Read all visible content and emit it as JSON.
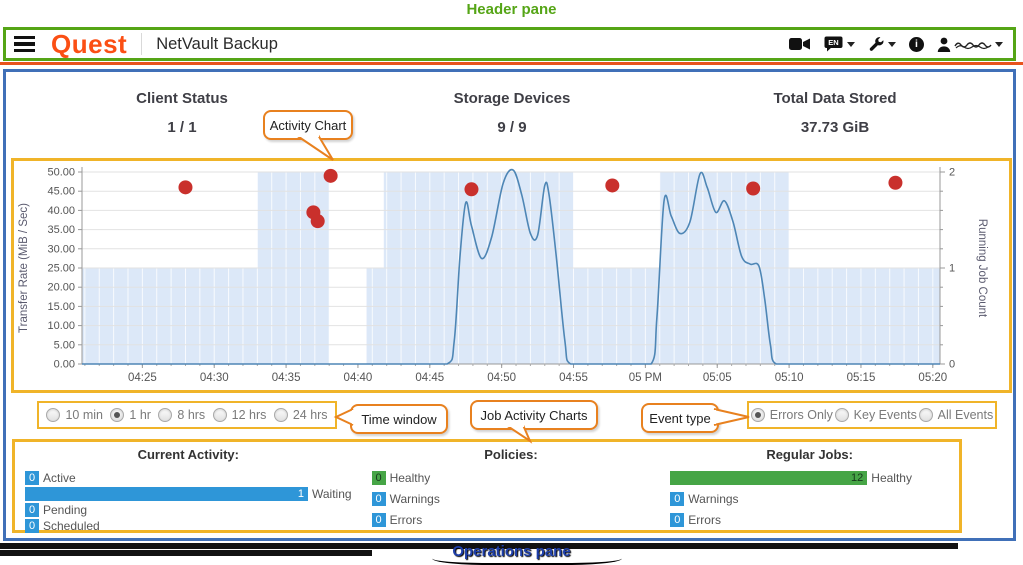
{
  "annotations": {
    "header_pane": "Header pane",
    "operations_pane": "Operations pane",
    "activity_chart": "Activity Chart",
    "time_window": "Time window",
    "job_activity_charts": "Job Activity Charts",
    "event_type": "Event type"
  },
  "header": {
    "brand": "Quest",
    "app_title": "NetVault Backup",
    "language_badge": "EN",
    "icons": [
      "menu-icon",
      "video-camera-icon",
      "language-en-icon",
      "support-tools-icon",
      "info-icon",
      "user-icon"
    ]
  },
  "stats": [
    {
      "label": "Client Status",
      "value": "1 / 1"
    },
    {
      "label": "Storage Devices",
      "value": "9 / 9"
    },
    {
      "label": "Total Data Stored",
      "value": "37.73 GiB"
    }
  ],
  "controls": {
    "time_window_options": [
      {
        "label": "10 min",
        "selected": false
      },
      {
        "label": "1 hr",
        "selected": true
      },
      {
        "label": "8 hrs",
        "selected": false
      },
      {
        "label": "12 hrs",
        "selected": false
      },
      {
        "label": "24 hrs",
        "selected": false
      }
    ],
    "event_type_options": [
      {
        "label": "Errors Only",
        "selected": true
      },
      {
        "label": "Key Events",
        "selected": false
      },
      {
        "label": "All Events",
        "selected": false
      }
    ]
  },
  "chart_data": {
    "type": "line",
    "title": "Activity Chart",
    "ylabel_left": "Transfer Rate (MiB / Sec)",
    "ylabel_right": "Running Job Count",
    "ylim_left": [
      0,
      50
    ],
    "ylim_right": [
      0,
      2
    ],
    "grid": true,
    "x_domain": [
      0.8,
      60.5
    ],
    "x_domain_note": "minutes after 04:20 PM",
    "y_ticks_left": [
      "0.00",
      "5.00",
      "10.00",
      "15.00",
      "20.00",
      "25.00",
      "30.00",
      "35.00",
      "40.00",
      "45.00",
      "50.00"
    ],
    "y_ticks_right": [
      "0",
      "1",
      "2"
    ],
    "x_ticks": [
      {
        "m": 5,
        "label": "04:25"
      },
      {
        "m": 10,
        "label": "04:30"
      },
      {
        "m": 15,
        "label": "04:35"
      },
      {
        "m": 20,
        "label": "04:40"
      },
      {
        "m": 25,
        "label": "04:45"
      },
      {
        "m": 30,
        "label": "04:50"
      },
      {
        "m": 35,
        "label": "04:55"
      },
      {
        "m": 40,
        "label": "05 PM"
      },
      {
        "m": 45,
        "label": "05:05"
      },
      {
        "m": 50,
        "label": "05:10"
      },
      {
        "m": 55,
        "label": "05:15"
      },
      {
        "m": 60,
        "label": "05:20"
      }
    ],
    "series": [
      {
        "name": "Running Job Count",
        "type": "area",
        "axis": "right",
        "color": "#dce8f8",
        "points": [
          [
            0.8,
            1
          ],
          [
            13,
            1
          ],
          [
            13,
            2
          ],
          [
            18,
            2
          ],
          [
            18,
            0
          ],
          [
            20.6,
            0
          ],
          [
            20.6,
            1
          ],
          [
            21.8,
            1
          ],
          [
            21.8,
            2
          ],
          [
            35,
            2
          ],
          [
            35,
            1
          ],
          [
            41,
            1
          ],
          [
            41,
            2
          ],
          [
            50,
            2
          ],
          [
            50,
            1
          ],
          [
            60.5,
            1
          ]
        ]
      },
      {
        "name": "Transfer Rate (MiB / Sec)",
        "type": "line",
        "axis": "left",
        "color": "#4e86b5",
        "points": [
          [
            0.8,
            0
          ],
          [
            26.2,
            0
          ],
          [
            26.7,
            6
          ],
          [
            27.1,
            28
          ],
          [
            27.5,
            42
          ],
          [
            27.9,
            36
          ],
          [
            28.6,
            27.5
          ],
          [
            29.3,
            33
          ],
          [
            30.1,
            47
          ],
          [
            30.8,
            50.5
          ],
          [
            31.4,
            44
          ],
          [
            32.0,
            34
          ],
          [
            32.5,
            33.5
          ],
          [
            33.0,
            46.5
          ],
          [
            33.3,
            44
          ],
          [
            33.8,
            28
          ],
          [
            34.4,
            6
          ],
          [
            34.8,
            0
          ],
          [
            40.4,
            0
          ],
          [
            40.8,
            12
          ],
          [
            41.3,
            42.5
          ],
          [
            41.8,
            38.5
          ],
          [
            42.4,
            34
          ],
          [
            43.1,
            37
          ],
          [
            43.8,
            49.5
          ],
          [
            44.3,
            46
          ],
          [
            44.9,
            39.5
          ],
          [
            45.5,
            42.5
          ],
          [
            46.1,
            37
          ],
          [
            46.7,
            28
          ],
          [
            47.3,
            26
          ],
          [
            47.9,
            25.5
          ],
          [
            48.3,
            17
          ],
          [
            48.7,
            5
          ],
          [
            49.1,
            0
          ],
          [
            60.5,
            0
          ]
        ]
      },
      {
        "name": "Error Events",
        "type": "scatter",
        "axis": "left",
        "color": "#c9302c",
        "points": [
          [
            8,
            46
          ],
          [
            16.9,
            39.5
          ],
          [
            17.2,
            37.2
          ],
          [
            18.1,
            49
          ],
          [
            27.9,
            45.5
          ],
          [
            37.7,
            46.5
          ],
          [
            47.5,
            45.7
          ],
          [
            57.4,
            47.2
          ]
        ]
      }
    ]
  },
  "operations": {
    "current_activity": {
      "title": "Current Activity:",
      "rows": [
        {
          "value": 0,
          "label": "Active",
          "color": "blue"
        },
        {
          "value": 1,
          "label": "Waiting",
          "color": "blue"
        },
        {
          "value": 0,
          "label": "Pending",
          "color": "blue"
        },
        {
          "value": 0,
          "label": "Scheduled",
          "color": "blue"
        }
      ]
    },
    "policies": {
      "title": "Policies:",
      "rows": [
        {
          "value": 0,
          "label": "Healthy",
          "color": "green"
        },
        {
          "value": 0,
          "label": "Warnings",
          "color": "blue"
        },
        {
          "value": 0,
          "label": "Errors",
          "color": "blue"
        }
      ]
    },
    "regular_jobs": {
      "title": "Regular Jobs:",
      "rows": [
        {
          "value": 12,
          "label": "Healthy",
          "color": "green"
        },
        {
          "value": 0,
          "label": "Warnings",
          "color": "blue"
        },
        {
          "value": 0,
          "label": "Errors",
          "color": "blue"
        }
      ]
    }
  },
  "colors": {
    "brand_orange": "#fb4f14",
    "annotation_green": "#55a516",
    "annotation_yellow": "#f0b429",
    "annotation_orange": "#e8811f",
    "annotation_blue": "#1e3faa",
    "pane_border_blue": "#4070b8",
    "bar_blue": "#2e96d8",
    "bar_green": "#46a546",
    "event_red": "#c9302c",
    "line_blue": "#4e86b5",
    "area_blue": "#dce8f8"
  }
}
